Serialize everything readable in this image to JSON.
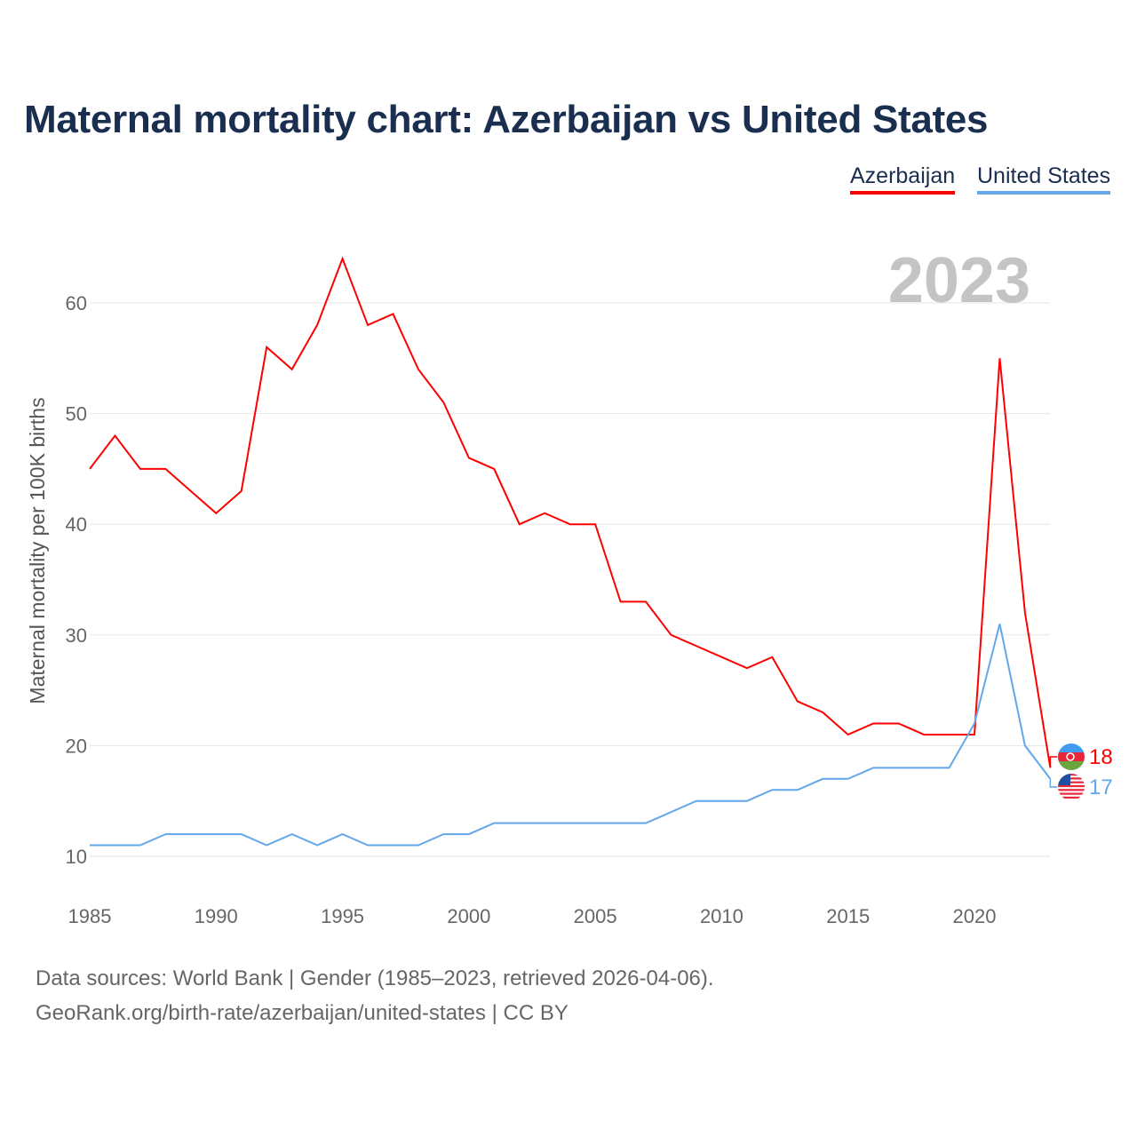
{
  "title": "Maternal mortality chart: Azerbaijan vs United States",
  "legend": [
    "Azerbaijan",
    "United States"
  ],
  "year_label": "2023",
  "footer": {
    "line1": "Data sources: World Bank | Gender (1985–2023, retrieved 2026-04-06).",
    "line2": "GeoRank.org/birth-rate/azerbaijan/united-states | CC BY"
  },
  "chart_data": {
    "type": "line",
    "title": "Maternal mortality chart: Azerbaijan vs United States",
    "xlabel": "",
    "ylabel": "Maternal mortality per 100K births",
    "xlim": [
      1985,
      2023
    ],
    "ylim": [
      10,
      64
    ],
    "xticks": [
      1985,
      1990,
      1995,
      2000,
      2005,
      2010,
      2015,
      2020
    ],
    "yticks": [
      10,
      20,
      30,
      40,
      50,
      60
    ],
    "grid": true,
    "legend_position": "top-right",
    "x": [
      1985,
      1986,
      1987,
      1988,
      1989,
      1990,
      1991,
      1992,
      1993,
      1994,
      1995,
      1996,
      1997,
      1998,
      1999,
      2000,
      2001,
      2002,
      2003,
      2004,
      2005,
      2006,
      2007,
      2008,
      2009,
      2010,
      2011,
      2012,
      2013,
      2014,
      2015,
      2016,
      2017,
      2018,
      2019,
      2020,
      2021,
      2022,
      2023
    ],
    "series": [
      {
        "name": "Azerbaijan",
        "color": "#ff0000",
        "end_label": "18",
        "values": [
          45,
          48,
          45,
          45,
          43,
          41,
          43,
          56,
          54,
          58,
          64,
          58,
          59,
          54,
          51,
          46,
          45,
          40,
          41,
          40,
          40,
          33,
          33,
          30,
          29,
          28,
          27,
          28,
          24,
          23,
          21,
          22,
          22,
          21,
          21,
          21,
          55,
          32,
          18
        ]
      },
      {
        "name": "United States",
        "color": "#63a7ea",
        "end_label": "17",
        "values": [
          11,
          11,
          11,
          12,
          12,
          12,
          12,
          11,
          12,
          11,
          12,
          11,
          11,
          11,
          12,
          12,
          13,
          13,
          13,
          13,
          13,
          13,
          13,
          14,
          15,
          15,
          15,
          16,
          16,
          17,
          17,
          18,
          18,
          18,
          18,
          22,
          31,
          20,
          17
        ]
      }
    ]
  }
}
